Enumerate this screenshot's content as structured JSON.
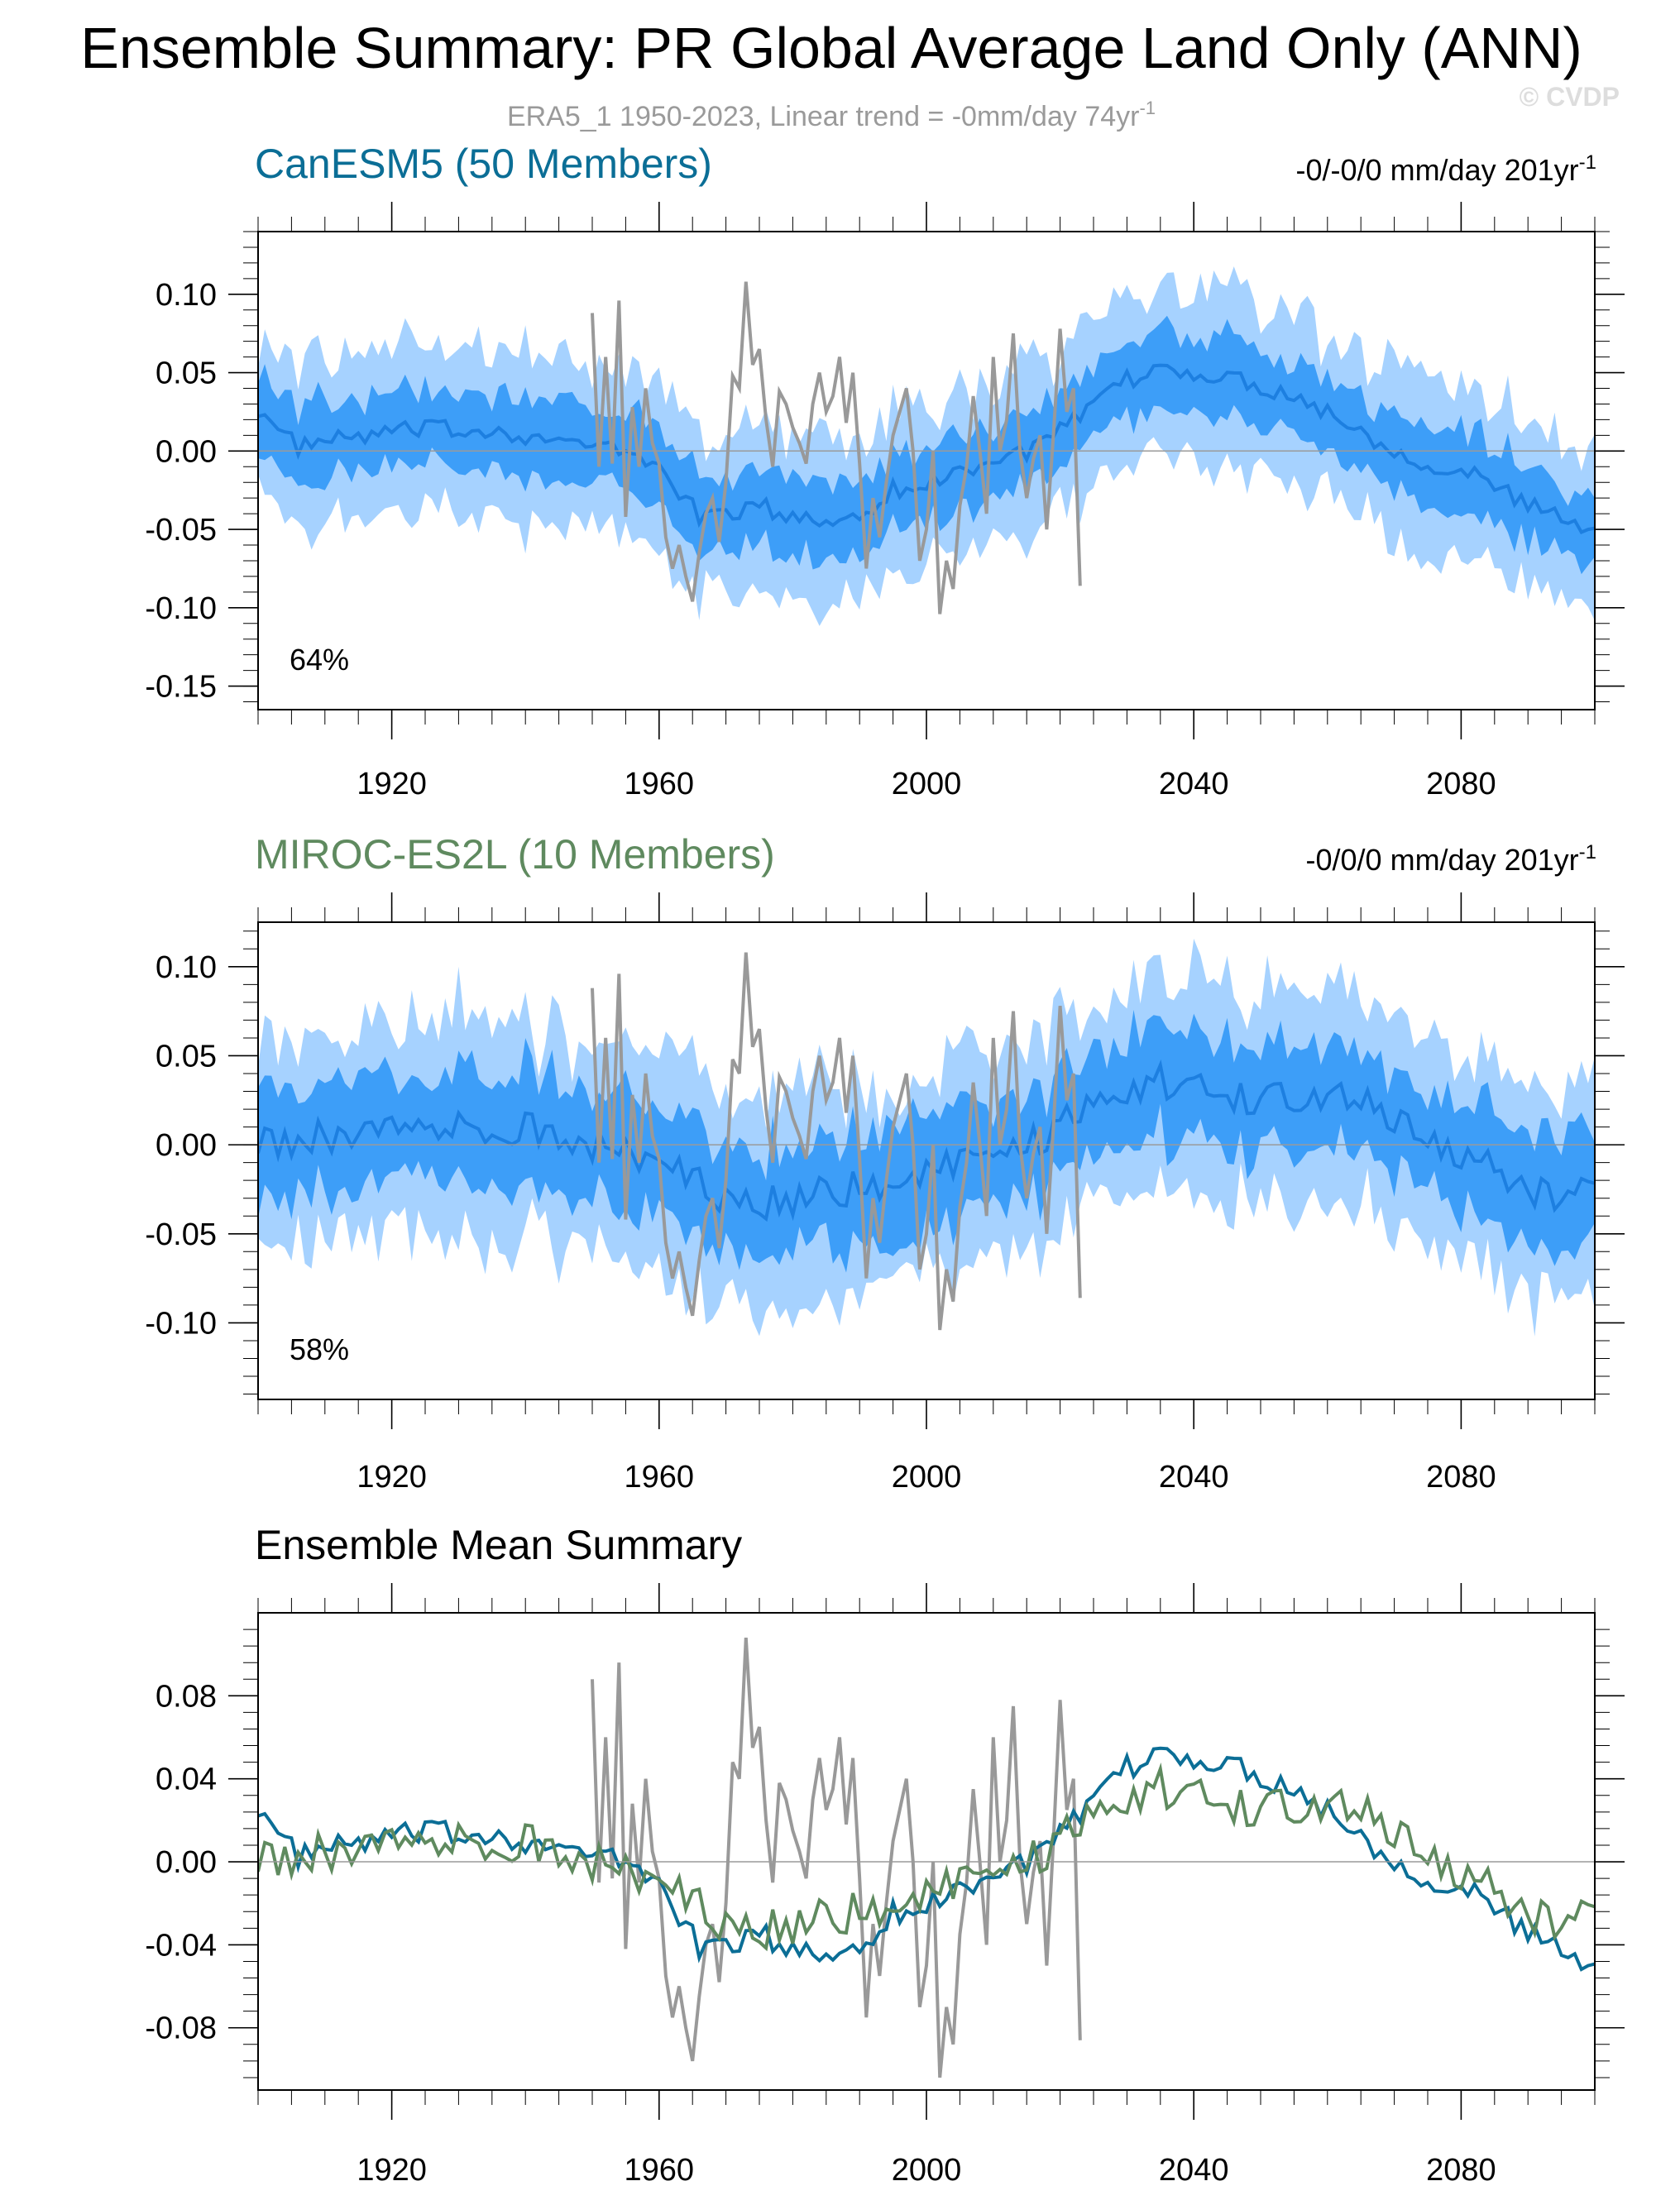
{
  "page": {
    "title": "Ensemble Summary: PR Global Average Land Only (ANN)",
    "subtitle": "ERA5_1 1950-2023, Linear trend = -0mm/day 74yr",
    "subtitle_sup": "-1",
    "watermark": "© CVDP"
  },
  "colors": {
    "canesm": "#0b6e96",
    "miroc": "#5f8a5f",
    "obs": "#999999",
    "band_outer": "#a6d2ff",
    "band_inner": "#3d9ef8",
    "mean_line": "#1d7fe0"
  },
  "chart_data": [
    {
      "type": "area",
      "title": "CanESM5 (50 Members)",
      "trend_text": "-0/-0/0 mm/day 201yr",
      "trend_sup": "-1",
      "percent_label": "64%",
      "xlim": [
        1900,
        2100
      ],
      "ylim": [
        -0.165,
        0.14
      ],
      "xticks": [
        1920,
        1960,
        2000,
        2040,
        2080
      ],
      "xtick_labels": [
        "1920",
        "1960",
        "2000",
        "2040",
        "2080"
      ],
      "yticks": [
        0.1,
        0.05,
        0.0,
        -0.05,
        -0.1,
        -0.15
      ],
      "ytick_labels": [
        "0.10",
        "0.05",
        "0.00",
        "-0.05",
        "-0.10",
        "-0.15"
      ],
      "ensemble_mean_anchors": [
        [
          1900,
          0.028
        ],
        [
          1903,
          0.012
        ],
        [
          1906,
          0.003
        ],
        [
          1910,
          0.006
        ],
        [
          1915,
          0.009
        ],
        [
          1920,
          0.012
        ],
        [
          1925,
          0.014
        ],
        [
          1930,
          0.013
        ],
        [
          1935,
          0.014
        ],
        [
          1940,
          0.01
        ],
        [
          1945,
          0.006
        ],
        [
          1950,
          0.003
        ],
        [
          1955,
          0.0
        ],
        [
          1960,
          -0.01
        ],
        [
          1963,
          -0.025
        ],
        [
          1966,
          -0.042
        ],
        [
          1970,
          -0.04
        ],
        [
          1975,
          -0.035
        ],
        [
          1980,
          -0.043
        ],
        [
          1985,
          -0.045
        ],
        [
          1990,
          -0.04
        ],
        [
          1995,
          -0.025
        ],
        [
          2000,
          -0.022
        ],
        [
          2005,
          -0.012
        ],
        [
          2010,
          -0.006
        ],
        [
          2015,
          0.0
        ],
        [
          2020,
          0.012
        ],
        [
          2025,
          0.028
        ],
        [
          2030,
          0.045
        ],
        [
          2035,
          0.052
        ],
        [
          2040,
          0.05
        ],
        [
          2045,
          0.047
        ],
        [
          2050,
          0.042
        ],
        [
          2055,
          0.035
        ],
        [
          2060,
          0.025
        ],
        [
          2065,
          0.013
        ],
        [
          2070,
          0.0
        ],
        [
          2075,
          -0.008
        ],
        [
          2080,
          -0.012
        ],
        [
          2085,
          -0.022
        ],
        [
          2090,
          -0.035
        ],
        [
          2095,
          -0.042
        ],
        [
          2100,
          -0.055
        ]
      ],
      "inner_halfwidth": 0.024,
      "outer_halfwidth": 0.052,
      "mean_noise": 0.006
    },
    {
      "type": "area",
      "title": "MIROC-ES2L (10 Members)",
      "trend_text": "-0/0/0 mm/day 201yr",
      "trend_sup": "-1",
      "percent_label": "58%",
      "xlim": [
        1900,
        2100
      ],
      "ylim": [
        -0.143,
        0.125
      ],
      "xticks": [
        1920,
        1960,
        2000,
        2040,
        2080
      ],
      "xtick_labels": [
        "1920",
        "1960",
        "2000",
        "2040",
        "2080"
      ],
      "yticks": [
        0.1,
        0.05,
        0.0,
        -0.05,
        -0.1
      ],
      "ytick_labels": [
        "0.10",
        "0.05",
        "0.00",
        "-0.05",
        "-0.10"
      ],
      "ensemble_mean_anchors": [
        [
          1900,
          0.005
        ],
        [
          1905,
          0.002
        ],
        [
          1910,
          0.005
        ],
        [
          1915,
          0.01
        ],
        [
          1920,
          0.008
        ],
        [
          1925,
          0.012
        ],
        [
          1930,
          0.015
        ],
        [
          1935,
          0.01
        ],
        [
          1940,
          0.008
        ],
        [
          1945,
          0.005
        ],
        [
          1950,
          0.0
        ],
        [
          1955,
          -0.005
        ],
        [
          1960,
          -0.01
        ],
        [
          1965,
          -0.02
        ],
        [
          1970,
          -0.03
        ],
        [
          1975,
          -0.035
        ],
        [
          1980,
          -0.03
        ],
        [
          1985,
          -0.025
        ],
        [
          1990,
          -0.025
        ],
        [
          1995,
          -0.02
        ],
        [
          2000,
          -0.015
        ],
        [
          2005,
          -0.01
        ],
        [
          2010,
          -0.01
        ],
        [
          2015,
          0.0
        ],
        [
          2020,
          0.01
        ],
        [
          2025,
          0.025
        ],
        [
          2030,
          0.03
        ],
        [
          2035,
          0.035
        ],
        [
          2040,
          0.035
        ],
        [
          2045,
          0.03
        ],
        [
          2050,
          0.025
        ],
        [
          2055,
          0.025
        ],
        [
          2060,
          0.03
        ],
        [
          2065,
          0.025
        ],
        [
          2070,
          0.015
        ],
        [
          2075,
          0.005
        ],
        [
          2080,
          -0.005
        ],
        [
          2085,
          -0.015
        ],
        [
          2090,
          -0.025
        ],
        [
          2095,
          -0.03
        ],
        [
          2100,
          -0.018
        ]
      ],
      "inner_halfwidth": 0.03,
      "outer_halfwidth": 0.058,
      "mean_noise": 0.01
    },
    {
      "type": "line",
      "title": "Ensemble Mean Summary",
      "xlim": [
        1900,
        2100
      ],
      "ylim": [
        -0.11,
        0.12
      ],
      "xticks": [
        1920,
        1960,
        2000,
        2040,
        2080
      ],
      "xtick_labels": [
        "1920",
        "1960",
        "2000",
        "2040",
        "2080"
      ],
      "yticks": [
        0.08,
        0.04,
        0.0,
        -0.04,
        -0.08
      ],
      "ytick_labels": [
        "0.08",
        "0.04",
        "0.00",
        "-0.04",
        "-0.08"
      ]
    }
  ],
  "observations": {
    "x": [
      1950,
      1951,
      1952,
      1953,
      1954,
      1955,
      1956,
      1957,
      1958,
      1959,
      1960,
      1961,
      1962,
      1963,
      1964,
      1965,
      1966,
      1967,
      1968,
      1969,
      1970,
      1971,
      1972,
      1973,
      1974,
      1975,
      1976,
      1977,
      1978,
      1979,
      1980,
      1981,
      1982,
      1983,
      1984,
      1985,
      1986,
      1987,
      1988,
      1989,
      1990,
      1991,
      1992,
      1993,
      1994,
      1995,
      1996,
      1997,
      1998,
      1999,
      2000,
      2001,
      2002,
      2003,
      2004,
      2005,
      2006,
      2007,
      2008,
      2009,
      2010,
      2011,
      2012,
      2013,
      2014,
      2015,
      2016,
      2017,
      2018,
      2019,
      2020,
      2021,
      2022,
      2023
    ],
    "y": [
      0.088,
      -0.01,
      0.06,
      -0.008,
      0.096,
      -0.042,
      0.028,
      -0.01,
      0.04,
      0.005,
      -0.008,
      -0.055,
      -0.075,
      -0.06,
      -0.08,
      -0.096,
      -0.065,
      -0.04,
      -0.03,
      -0.058,
      -0.02,
      0.048,
      0.04,
      0.108,
      0.055,
      0.065,
      0.02,
      -0.01,
      0.038,
      0.03,
      0.015,
      0.005,
      -0.008,
      0.03,
      0.05,
      0.025,
      0.035,
      0.06,
      0.018,
      0.05,
      -0.008,
      -0.075,
      -0.03,
      -0.055,
      -0.02,
      0.01,
      0.025,
      0.04,
      0.0,
      -0.07,
      -0.05,
      0.0,
      -0.104,
      -0.07,
      -0.088,
      -0.035,
      -0.01,
      0.035,
      0.0,
      -0.04,
      0.06,
      0.0,
      0.02,
      0.075,
      0.0,
      -0.03,
      -0.005,
      0.01,
      -0.05,
      0.01,
      0.078,
      0.025,
      0.04,
      -0.086
    ]
  }
}
